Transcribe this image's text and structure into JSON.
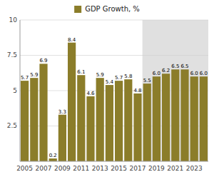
{
  "chart_data": {
    "type": "bar",
    "categories": [
      "2005",
      null,
      "2007",
      null,
      "2009",
      null,
      "2011",
      null,
      "2013",
      null,
      "2015",
      null,
      "2017",
      null,
      "2019",
      null,
      "2021",
      null,
      "2023",
      null
    ],
    "series": [
      {
        "name": "GDP Growth, %",
        "color": "#8B7D2A",
        "values": [
          5.7,
          5.9,
          6.9,
          0.2,
          3.3,
          8.4,
          6.1,
          4.6,
          5.9,
          5.4,
          5.7,
          5.8,
          4.8,
          5.5,
          6.0,
          6.2,
          6.5,
          6.5,
          6.0,
          6.0
        ],
        "value_labels": [
          "5.7",
          "5.9",
          "6.9",
          "0.2",
          "3.3",
          "8.4",
          "6.1",
          "4.6",
          "5.9",
          "5.4",
          "5.7",
          "5.8",
          "4.8",
          "5.5",
          "6.0",
          "6.2",
          "6.5",
          "6.5",
          "6.0",
          "6.0"
        ]
      }
    ],
    "forecast_start": 13,
    "ylim": [
      0,
      10
    ],
    "yticks": [
      2.5,
      5,
      7.5,
      10
    ],
    "grid": true,
    "legend": "top",
    "data_labels": true
  }
}
